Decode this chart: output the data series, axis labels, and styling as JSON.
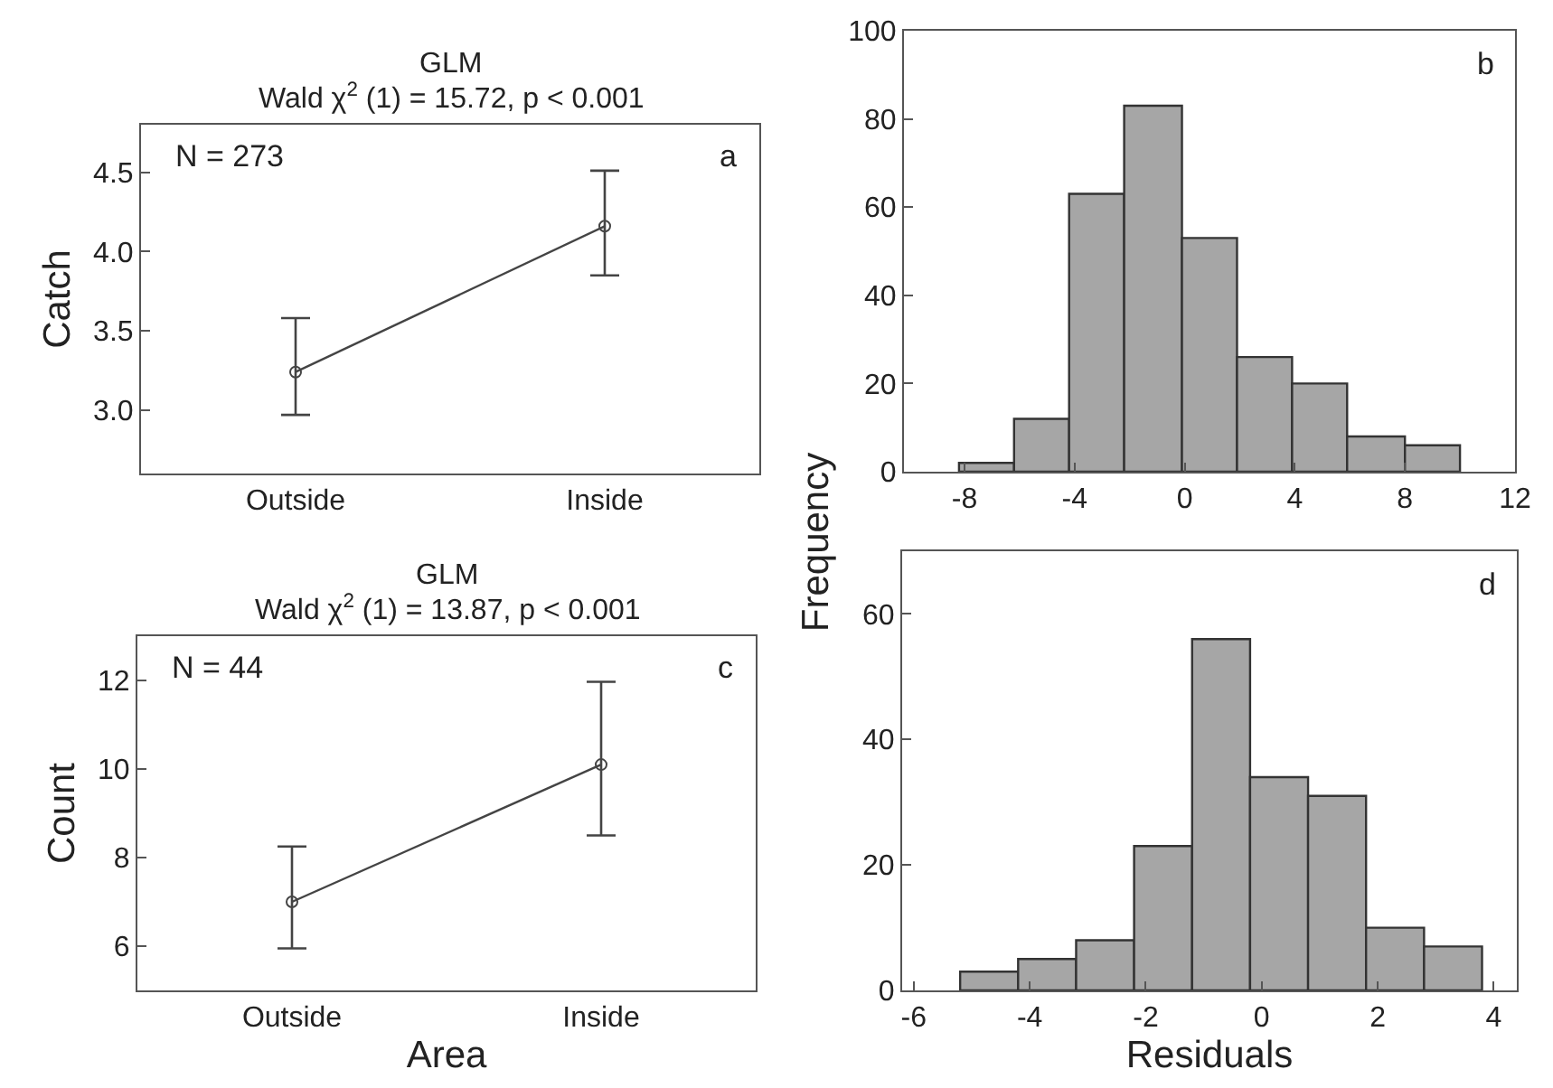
{
  "chart_data": [
    {
      "type": "line",
      "title": "GLM",
      "subtitle": "Wald χ$^{2}$ (1) = 15.72, p < 0.001",
      "ylabel": "Catch",
      "categories": [
        "Outside",
        "Inside"
      ],
      "values": [
        3.24,
        4.16
      ],
      "errors": [
        [
          2.97,
          3.58
        ],
        [
          3.85,
          4.51
        ]
      ],
      "color": "#444444",
      "marker": "circle",
      "ylim": [
        2.6,
        4.8
      ],
      "yticks": [
        {
          "value": 3,
          "label": "3.0"
        },
        3.5,
        {
          "value": 4,
          "label": "4.0"
        },
        4.5
      ],
      "annotations": [
        "N = 273",
        "a"
      ]
    },
    {
      "type": "histogram",
      "ylabel": "Frequency",
      "bins": [
        -8.2,
        -6.2,
        -4.2,
        -2.2,
        -0.1,
        1.9,
        3.9,
        5.9,
        8.0,
        10.0
      ],
      "values": [
        2,
        12,
        63,
        83,
        53,
        26,
        20,
        8,
        6
      ],
      "color": "#a6a6a6",
      "xlim": [
        -10.2,
        12
      ],
      "xticks": [
        -8,
        -4,
        0,
        4,
        8,
        12
      ],
      "ylim": [
        0,
        100
      ],
      "yticks": [
        0,
        20,
        40,
        60,
        80,
        100
      ],
      "annotations": [
        "b"
      ]
    },
    {
      "type": "line",
      "title": "GLM",
      "subtitle": "Wald χ$^{2}$ (1) = 13.87, p < 0.001",
      "xlabel": "Area",
      "ylabel": "Count",
      "categories": [
        "Outside",
        "Inside"
      ],
      "values": [
        7.0,
        10.1
      ],
      "errors": [
        [
          5.95,
          8.25
        ],
        [
          8.5,
          11.97
        ]
      ],
      "color": "#444444",
      "marker": "circle",
      "ylim": [
        5,
        13
      ],
      "yticks": [
        6,
        8,
        10,
        12
      ],
      "annotations": [
        "N = 44",
        "c"
      ]
    },
    {
      "type": "histogram",
      "xlabel": "Residuals",
      "bins": [
        -5.2,
        -4.2,
        -3.2,
        -2.2,
        -1.2,
        -0.2,
        0.8,
        1.8,
        2.8,
        3.8
      ],
      "values": [
        3,
        5,
        8,
        23,
        56,
        34,
        31,
        10,
        7
      ],
      "color": "#a6a6a6",
      "xlim": [
        -6.2,
        4.4
      ],
      "xticks": [
        -6,
        -4,
        -2,
        0,
        2,
        4
      ],
      "ylim": [
        0,
        70
      ],
      "yticks": [
        0,
        20,
        40,
        60
      ],
      "annotations": [
        "d"
      ]
    }
  ]
}
